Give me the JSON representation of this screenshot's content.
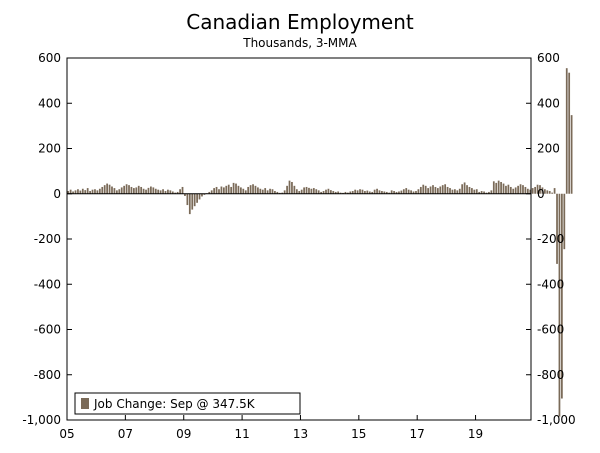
{
  "chart_data": {
    "type": "bar",
    "title": "Canadian Employment",
    "subtitle": "Thousands, 3-MMA",
    "xlabel": "",
    "ylabel": "",
    "ylim": [
      -1000,
      600
    ],
    "xlim": [
      2005,
      2020.9
    ],
    "grid": false,
    "legend": {
      "position": "bottom-left",
      "label": "Job Change: Sep @ 347.5K"
    },
    "y_ticks": [
      "600",
      "400",
      "200",
      "0",
      "-200",
      "-400",
      "-600",
      "-800",
      "-1,000"
    ],
    "y_tick_values": [
      600,
      400,
      200,
      0,
      -200,
      -400,
      -600,
      -800,
      -1000
    ],
    "x_ticks": [
      "05",
      "07",
      "09",
      "11",
      "13",
      "15",
      "17",
      "19"
    ],
    "x_tick_values": [
      2005,
      2007,
      2009,
      2011,
      2013,
      2015,
      2017,
      2019
    ],
    "colors": {
      "bar": "#7a6a58",
      "axis": "#000000"
    },
    "start": "2005-01",
    "series": [
      {
        "values": [
          12,
          18,
          10,
          15,
          20,
          14,
          22,
          16,
          25,
          12,
          18,
          20,
          15,
          22,
          30,
          38,
          45,
          40,
          32,
          25,
          15,
          20,
          28,
          35,
          42,
          38,
          30,
          25,
          28,
          35,
          30,
          22,
          18,
          26,
          32,
          28,
          22,
          18,
          15,
          20,
          12,
          18,
          15,
          10,
          5,
          8,
          20,
          30,
          -10,
          -50,
          -90,
          -70,
          -55,
          -40,
          -25,
          -12,
          -5,
          2,
          8,
          15,
          25,
          30,
          20,
          32,
          28,
          35,
          40,
          30,
          48,
          45,
          35,
          28,
          22,
          15,
          30,
          38,
          42,
          35,
          28,
          22,
          18,
          25,
          15,
          22,
          20,
          12,
          8,
          4,
          5,
          15,
          35,
          58,
          52,
          35,
          20,
          12,
          18,
          28,
          30,
          26,
          22,
          25,
          20,
          15,
          8,
          12,
          18,
          22,
          16,
          12,
          8,
          10,
          5,
          4,
          8,
          5,
          10,
          12,
          18,
          15,
          20,
          18,
          12,
          14,
          10,
          8,
          18,
          22,
          15,
          12,
          10,
          8,
          5,
          15,
          12,
          8,
          10,
          14,
          20,
          25,
          18,
          15,
          10,
          12,
          20,
          30,
          40,
          35,
          25,
          32,
          38,
          30,
          25,
          32,
          38,
          42,
          30,
          25,
          18,
          20,
          15,
          22,
          42,
          50,
          38,
          30,
          25,
          18,
          20,
          8,
          12,
          10,
          5,
          8,
          15,
          55,
          48,
          58,
          52,
          45,
          35,
          40,
          30,
          22,
          28,
          35,
          42,
          38,
          30,
          22,
          18,
          25,
          30,
          40,
          38,
          28,
          20,
          15,
          12,
          5,
          25,
          -310,
          -985,
          -905,
          -245,
          555,
          535,
          347.5
        ]
      }
    ]
  }
}
